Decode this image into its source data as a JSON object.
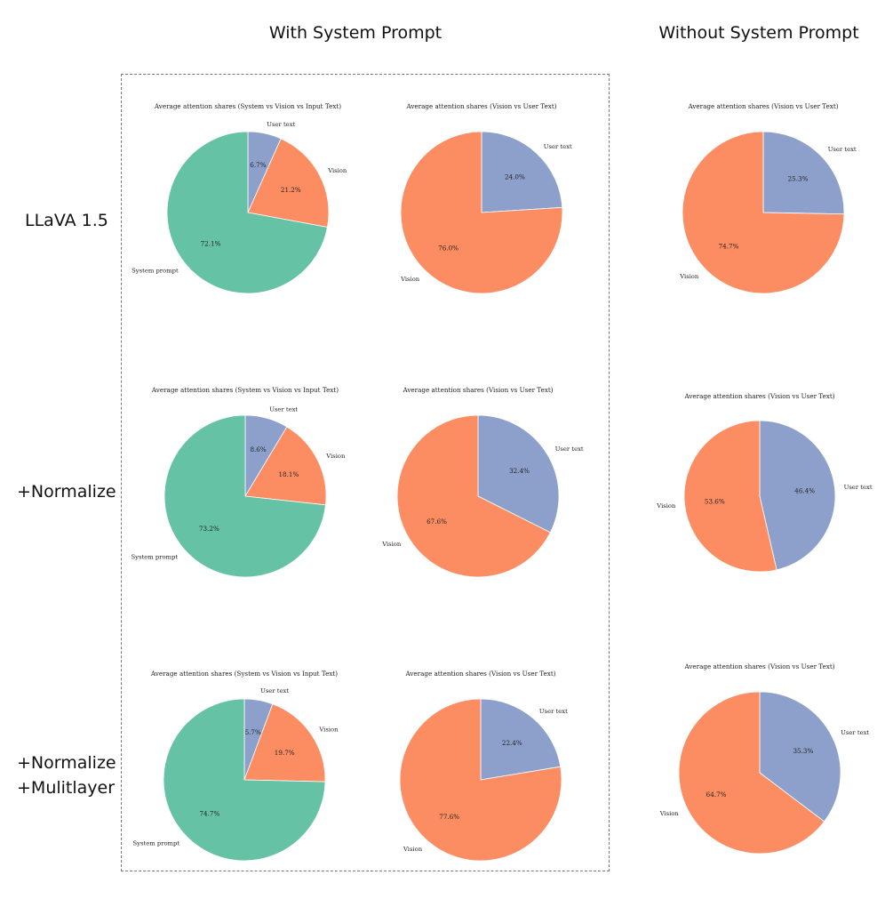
{
  "headers": {
    "with_system": "With System Prompt",
    "without_system": "Without System Prompt"
  },
  "rows": [
    {
      "label_lines": [
        "LLaVA 1.5"
      ]
    },
    {
      "label_lines": [
        "+Normalize"
      ]
    },
    {
      "label_lines": [
        "+Normalize",
        "+Mulitlayer"
      ]
    }
  ],
  "colors": {
    "system_prompt": "#66c2a5",
    "vision": "#fc8d62",
    "user_text": "#8da0cb"
  },
  "chart_data": [
    {
      "id": "r0c0",
      "type": "pie",
      "title": "Average attention shares (System vs Vision vs Input Text)",
      "slices": [
        {
          "label": "User text",
          "value": 6.7,
          "pct": "6.7%",
          "color_key": "user_text"
        },
        {
          "label": "Vision",
          "value": 21.2,
          "pct": "21.2%",
          "color_key": "vision"
        },
        {
          "label": "System prompt",
          "value": 72.1,
          "pct": "72.1%",
          "color_key": "system_prompt"
        }
      ]
    },
    {
      "id": "r0c1",
      "type": "pie",
      "title": "Average attention shares (Vision vs User Text)",
      "slices": [
        {
          "label": "User text",
          "value": 24.0,
          "pct": "24.0%",
          "color_key": "user_text"
        },
        {
          "label": "Vision",
          "value": 76.0,
          "pct": "76.0%",
          "color_key": "vision"
        }
      ]
    },
    {
      "id": "r0c2",
      "type": "pie",
      "title": "Average attention shares (Vision vs User Text)",
      "slices": [
        {
          "label": "User text",
          "value": 25.3,
          "pct": "25.3%",
          "color_key": "user_text"
        },
        {
          "label": "Vision",
          "value": 74.7,
          "pct": "74.7%",
          "color_key": "vision"
        }
      ]
    },
    {
      "id": "r1c0",
      "type": "pie",
      "title": "Average attention shares (System vs Vision vs Input Text)",
      "slices": [
        {
          "label": "User text",
          "value": 8.6,
          "pct": "8.6%",
          "color_key": "user_text"
        },
        {
          "label": "Vision",
          "value": 18.1,
          "pct": "18.1%",
          "color_key": "vision"
        },
        {
          "label": "System prompt",
          "value": 73.2,
          "pct": "73.2%",
          "color_key": "system_prompt"
        }
      ]
    },
    {
      "id": "r1c1",
      "type": "pie",
      "title": "Average attention shares (Vision vs User Text)",
      "slices": [
        {
          "label": "User text",
          "value": 32.4,
          "pct": "32.4%",
          "color_key": "user_text"
        },
        {
          "label": "Vision",
          "value": 67.6,
          "pct": "67.6%",
          "color_key": "vision"
        }
      ]
    },
    {
      "id": "r1c2",
      "type": "pie",
      "title": "Average attention shares (Vision vs User Text)",
      "slices": [
        {
          "label": "User text",
          "value": 46.4,
          "pct": "46.4%",
          "color_key": "user_text"
        },
        {
          "label": "Vision",
          "value": 53.6,
          "pct": "53.6%",
          "color_key": "vision"
        }
      ]
    },
    {
      "id": "r2c0",
      "type": "pie",
      "title": "Average attention shares (System vs Vision vs Input Text)",
      "slices": [
        {
          "label": "User text",
          "value": 5.7,
          "pct": "5.7%",
          "color_key": "user_text"
        },
        {
          "label": "Vision",
          "value": 19.7,
          "pct": "19.7%",
          "color_key": "vision"
        },
        {
          "label": "System prompt",
          "value": 74.7,
          "pct": "74.7%",
          "color_key": "system_prompt"
        }
      ]
    },
    {
      "id": "r2c1",
      "type": "pie",
      "title": "Average attention shares (Vision vs User Text)",
      "slices": [
        {
          "label": "User text",
          "value": 22.4,
          "pct": "22.4%",
          "color_key": "user_text"
        },
        {
          "label": "Vision",
          "value": 77.6,
          "pct": "77.6%",
          "color_key": "vision"
        }
      ]
    },
    {
      "id": "r2c2",
      "type": "pie",
      "title": "Average attention shares (Vision vs User Text)",
      "slices": [
        {
          "label": "User text",
          "value": 35.3,
          "pct": "35.3%",
          "color_key": "user_text"
        },
        {
          "label": "Vision",
          "value": 64.7,
          "pct": "64.7%",
          "color_key": "vision"
        }
      ]
    }
  ]
}
